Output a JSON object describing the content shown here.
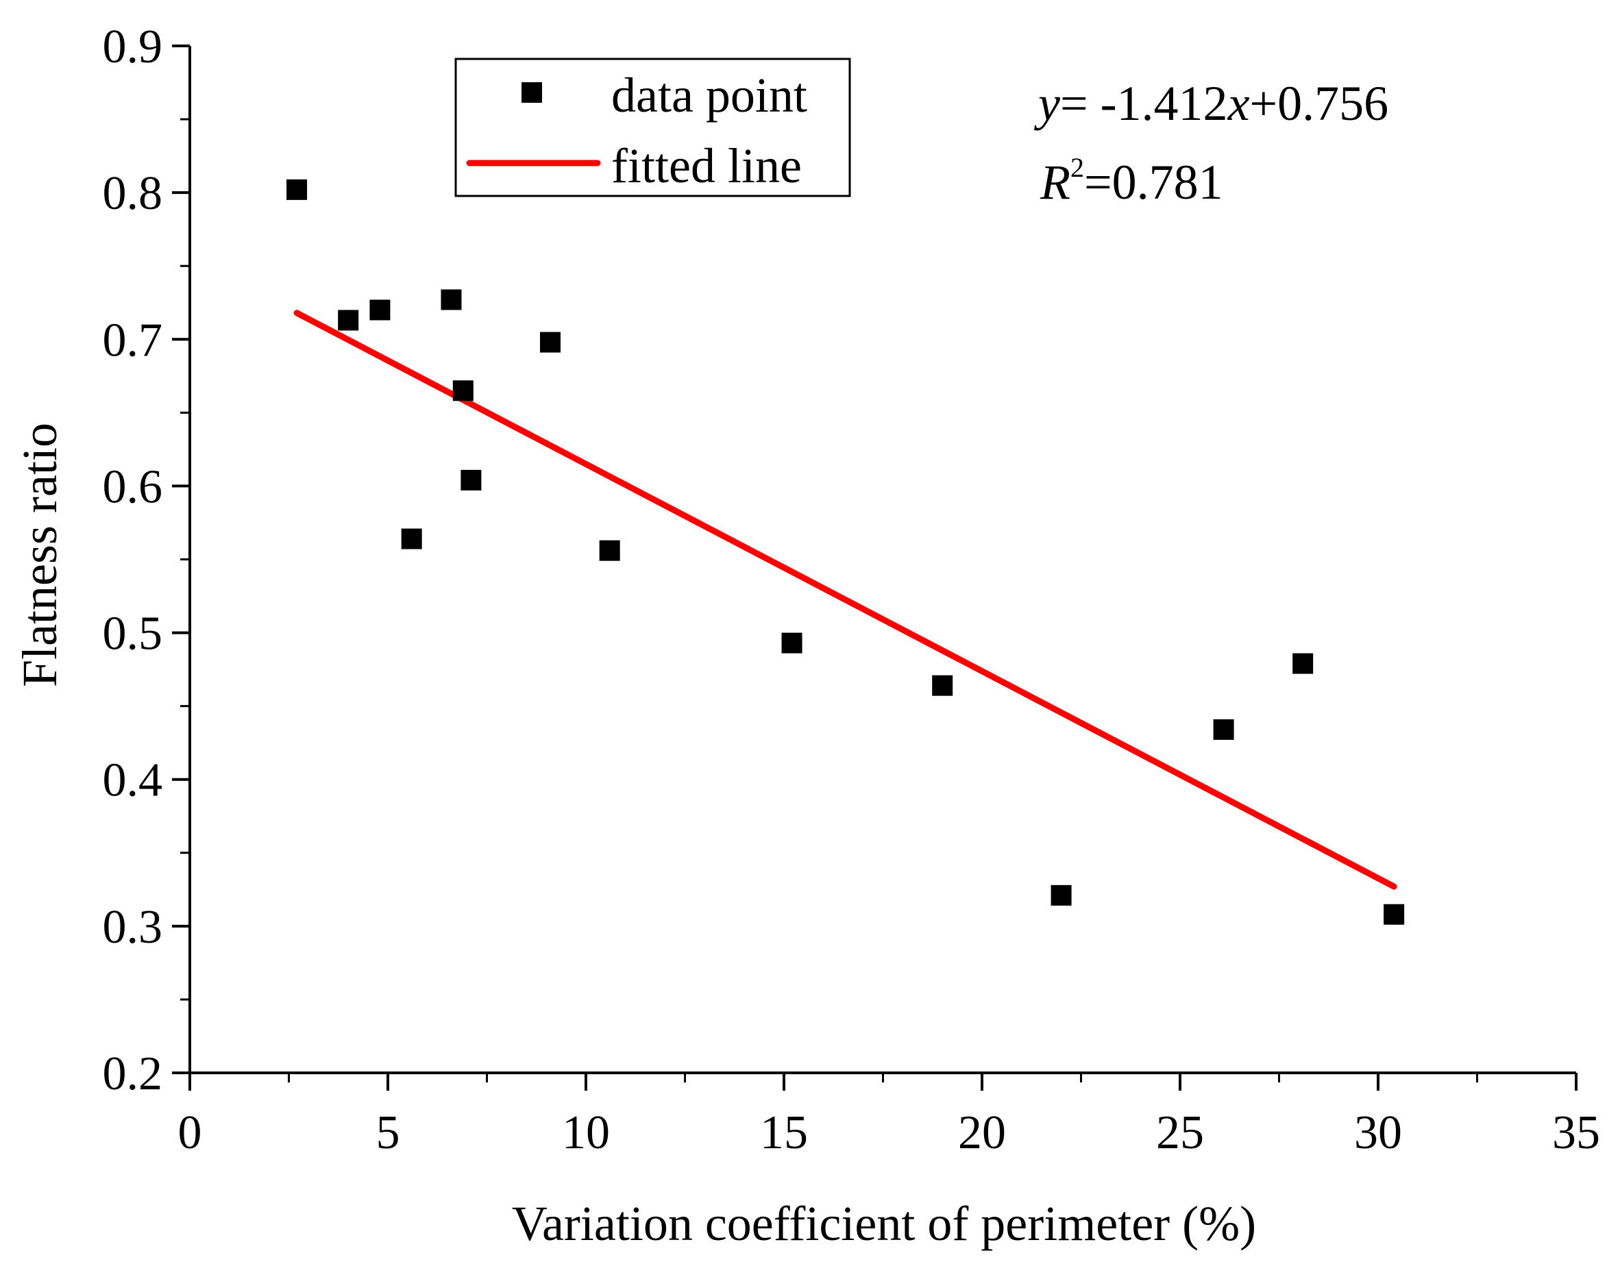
{
  "chart_data": {
    "type": "scatter",
    "title": "",
    "xlabel": "Variation coefficient of perimeter (%)",
    "ylabel": "Flatness ratio",
    "xlim": [
      0,
      35
    ],
    "ylim": [
      0.2,
      0.9
    ],
    "x_ticks": [
      "0",
      "5",
      "10",
      "15",
      "20",
      "25",
      "30",
      "35"
    ],
    "y_ticks": [
      "0.2",
      "0.3",
      "0.4",
      "0.5",
      "0.6",
      "0.7",
      "0.8",
      "0.9"
    ],
    "x_tick_values": [
      0,
      5,
      10,
      15,
      20,
      25,
      30,
      35
    ],
    "y_tick_values": [
      0.2,
      0.3,
      0.4,
      0.5,
      0.6,
      0.7,
      0.8,
      0.9
    ],
    "x_minor_step": 2.5,
    "y_minor_step": 0.05,
    "grid": false,
    "legend_position": "top-left",
    "series": [
      {
        "name": "data point",
        "kind": "scatter",
        "marker": "square",
        "color": "#000000",
        "points": [
          {
            "x": 2.7,
            "y": 0.802
          },
          {
            "x": 4.0,
            "y": 0.713
          },
          {
            "x": 4.8,
            "y": 0.72
          },
          {
            "x": 5.6,
            "y": 0.564
          },
          {
            "x": 6.6,
            "y": 0.727
          },
          {
            "x": 6.9,
            "y": 0.665
          },
          {
            "x": 7.1,
            "y": 0.604
          },
          {
            "x": 9.1,
            "y": 0.698
          },
          {
            "x": 10.6,
            "y": 0.556
          },
          {
            "x": 15.2,
            "y": 0.493
          },
          {
            "x": 19.0,
            "y": 0.464
          },
          {
            "x": 22.0,
            "y": 0.321
          },
          {
            "x": 26.1,
            "y": 0.434
          },
          {
            "x": 28.1,
            "y": 0.479
          },
          {
            "x": 30.4,
            "y": 0.308
          }
        ]
      },
      {
        "name": "fitted line",
        "kind": "line",
        "color": "#ff0000",
        "points": [
          {
            "x": 2.7,
            "y": 0.718
          },
          {
            "x": 30.4,
            "y": 0.327
          }
        ]
      }
    ],
    "annotations": {
      "equation": {
        "y_var": "y",
        "rest1": "= -1.412",
        "x_var": "x",
        "rest2": "+0.756"
      },
      "r2": {
        "r_var": "R",
        "sup": "2",
        "rest": "=0.781"
      }
    }
  }
}
